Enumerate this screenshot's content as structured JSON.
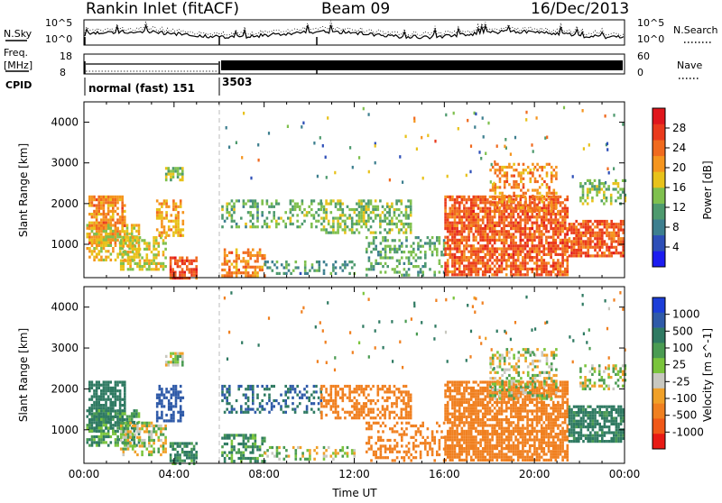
{
  "header": {
    "station": "Rankin Inlet (fitACF)",
    "beam": "Beam 09",
    "date": "16/Dec/2013"
  },
  "side_labels": {
    "nsky": "N.Sky",
    "nsearch": "N.Search",
    "freq": "Freq.",
    "freq_unit": "[MHz]",
    "nave": "Nave",
    "cpid": "CPID"
  },
  "small_axes": {
    "noise_left_top": "10^5",
    "noise_left_bottom": "10^0",
    "noise_right_top": "10^5",
    "noise_right_bottom": "10^0",
    "freq_top": "18",
    "freq_bottom": "8",
    "nave_top": "60",
    "nave_bottom": "0"
  },
  "cpid_modes": [
    {
      "label": "normal (fast) 151",
      "start_hour": 0,
      "end_hour": 6.0
    },
    {
      "label": "3503",
      "start_hour": 6.0,
      "end_hour": 24
    }
  ],
  "chart_data": [
    {
      "type": "heatmap",
      "title": "",
      "xlabel": "",
      "ylabel": "Slant Range [km]",
      "x_ticks": [
        "00:00",
        "04:00",
        "08:00",
        "12:00",
        "16:00",
        "20:00",
        "00:00"
      ],
      "x_range_hours": [
        0,
        24
      ],
      "y_ticks": [
        "1000",
        "2000",
        "3000",
        "4000"
      ],
      "ylim": [
        180,
        4500
      ],
      "colorbar": {
        "label": "Power [dB]",
        "ticks": [
          "4",
          "8",
          "12",
          "16",
          "20",
          "24",
          "28"
        ],
        "range": [
          0,
          32
        ],
        "colors": [
          "#1c1cf0",
          "#2e4fb8",
          "#3d7f8f",
          "#4e9a6e",
          "#7fc04e",
          "#e8c21a",
          "#f5951e",
          "#f06a1e",
          "#ea3a1c",
          "#e0161c"
        ]
      },
      "regions": [
        {
          "t0": 0.2,
          "t1": 1.8,
          "r0": 1000,
          "r1": 2200,
          "level": 22,
          "density": 0.75
        },
        {
          "t0": 0.1,
          "t1": 2.4,
          "r0": 600,
          "r1": 1500,
          "level": 18,
          "density": 0.55
        },
        {
          "t0": 1.6,
          "t1": 3.6,
          "r0": 400,
          "r1": 1200,
          "level": 17,
          "density": 0.6
        },
        {
          "t0": 3.2,
          "t1": 4.4,
          "r0": 1200,
          "r1": 2100,
          "level": 20,
          "density": 0.55
        },
        {
          "t0": 3.6,
          "t1": 4.4,
          "r0": 2600,
          "r1": 2900,
          "level": 15,
          "density": 0.7
        },
        {
          "t0": 3.8,
          "t1": 5.0,
          "r0": 200,
          "r1": 700,
          "level": 26,
          "density": 0.7
        },
        {
          "t0": 6.1,
          "t1": 10.5,
          "r0": 1400,
          "r1": 2100,
          "level": 13,
          "density": 0.4
        },
        {
          "t0": 6.1,
          "t1": 8.0,
          "r0": 250,
          "r1": 900,
          "level": 22,
          "density": 0.6
        },
        {
          "t0": 8.0,
          "t1": 12.0,
          "r0": 250,
          "r1": 600,
          "level": 10,
          "density": 0.35
        },
        {
          "t0": 10.5,
          "t1": 14.5,
          "r0": 1300,
          "r1": 2100,
          "level": 14,
          "density": 0.5
        },
        {
          "t0": 12.5,
          "t1": 16.0,
          "r0": 250,
          "r1": 1200,
          "level": 12,
          "density": 0.35
        },
        {
          "t0": 16.0,
          "t1": 21.5,
          "r0": 250,
          "r1": 2200,
          "level": 25,
          "density": 0.75
        },
        {
          "t0": 18.0,
          "t1": 21.0,
          "r0": 1800,
          "r1": 3000,
          "level": 22,
          "density": 0.4
        },
        {
          "t0": 21.5,
          "t1": 24.0,
          "r0": 700,
          "r1": 1600,
          "level": 25,
          "density": 0.75
        },
        {
          "t0": 22.0,
          "t1": 24.0,
          "r0": 2000,
          "r1": 2600,
          "level": 14,
          "density": 0.45
        }
      ]
    },
    {
      "type": "heatmap",
      "title": "",
      "xlabel": "Time UT",
      "ylabel": "Slant Range [km]",
      "x_ticks": [
        "00:00",
        "04:00",
        "08:00",
        "12:00",
        "16:00",
        "20:00",
        "00:00"
      ],
      "x_range_hours": [
        0,
        24
      ],
      "y_ticks": [
        "1000",
        "2000",
        "3000",
        "4000"
      ],
      "ylim": [
        180,
        4500
      ],
      "colorbar": {
        "label": "Velocity [m s^-1]",
        "ticks": [
          "1000",
          "500",
          "100",
          "25",
          "-25",
          "-100",
          "-500",
          "-1000"
        ],
        "range": [
          1000,
          -1000
        ],
        "colors": [
          "#1c3ed8",
          "#2f5aa8",
          "#2f7a62",
          "#4a9b52",
          "#7ac43c",
          "#c8c8c0",
          "#f0a028",
          "#f08020",
          "#f05818",
          "#e81a14"
        ]
      },
      "regions": [
        {
          "t0": 0.2,
          "t1": 1.8,
          "r0": 1000,
          "r1": 2200,
          "vel": 150,
          "density": 0.75
        },
        {
          "t0": 0.1,
          "t1": 2.4,
          "r0": 600,
          "r1": 1500,
          "vel": 60,
          "density": 0.55
        },
        {
          "t0": 1.6,
          "t1": 3.6,
          "r0": 400,
          "r1": 1200,
          "vel": 0,
          "density": 0.6
        },
        {
          "t0": 3.2,
          "t1": 4.4,
          "r0": 1200,
          "r1": 2100,
          "vel": 400,
          "density": 0.55
        },
        {
          "t0": 3.6,
          "t1": 4.4,
          "r0": 2600,
          "r1": 2900,
          "vel": 0,
          "density": 0.7
        },
        {
          "t0": 3.8,
          "t1": 5.0,
          "r0": 200,
          "r1": 700,
          "vel": 80,
          "density": 0.7
        },
        {
          "t0": 6.1,
          "t1": 10.5,
          "r0": 1400,
          "r1": 2100,
          "vel": 300,
          "density": 0.4
        },
        {
          "t0": 6.1,
          "t1": 8.0,
          "r0": 250,
          "r1": 900,
          "vel": 60,
          "density": 0.6
        },
        {
          "t0": 8.0,
          "t1": 12.0,
          "r0": 250,
          "r1": 600,
          "vel": 0,
          "density": 0.35
        },
        {
          "t0": 10.5,
          "t1": 14.5,
          "r0": 1300,
          "r1": 2100,
          "vel": -120,
          "density": 0.5
        },
        {
          "t0": 12.5,
          "t1": 16.0,
          "r0": 250,
          "r1": 1200,
          "vel": -150,
          "density": 0.35
        },
        {
          "t0": 16.0,
          "t1": 21.5,
          "r0": 250,
          "r1": 2200,
          "vel": -200,
          "density": 0.75
        },
        {
          "t0": 18.0,
          "t1": 21.0,
          "r0": 1800,
          "r1": 3000,
          "vel": 0,
          "density": 0.4
        },
        {
          "t0": 21.5,
          "t1": 24.0,
          "r0": 700,
          "r1": 1600,
          "vel": 100,
          "density": 0.75
        },
        {
          "t0": 22.0,
          "t1": 24.0,
          "r0": 2000,
          "r1": 2600,
          "vel": 0,
          "density": 0.45
        }
      ]
    }
  ]
}
